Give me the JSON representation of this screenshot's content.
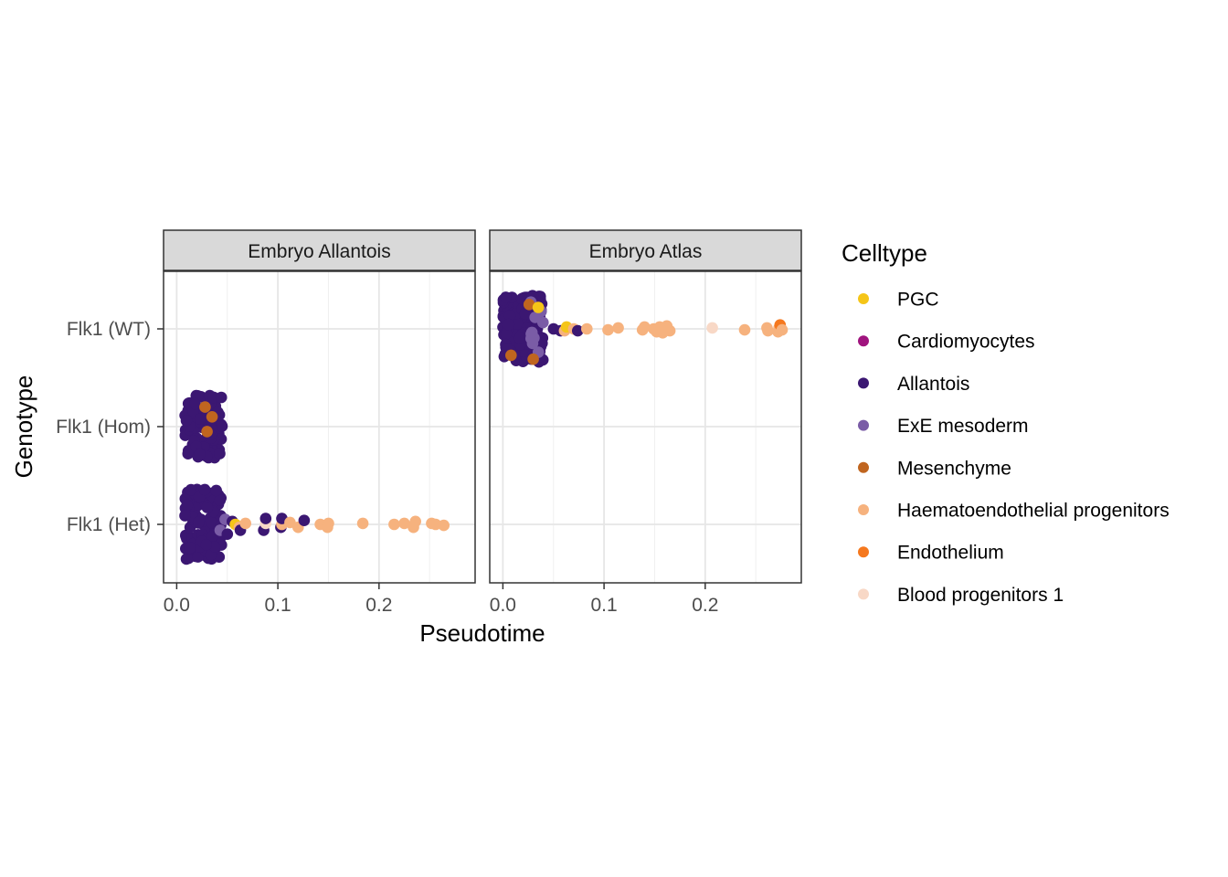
{
  "chart_data": {
    "type": "scatter",
    "xlabel": "Pseudotime",
    "ylabel": "Genotype",
    "xlim": [
      -0.013,
      0.295
    ],
    "x_ticks": [
      "0.0",
      "0.1",
      "0.2"
    ],
    "y_categories": [
      "Flk1 (WT)",
      "Flk1 (Hom)",
      "Flk1 (Het)"
    ],
    "grid": true,
    "legend": {
      "title": "Celltype",
      "position": "right",
      "entries": [
        {
          "name": "PGC",
          "color": "#F5C518"
        },
        {
          "name": "Cardiomyocytes",
          "color": "#A0147E"
        },
        {
          "name": "Allantois",
          "color": "#3B1772"
        },
        {
          "name": "ExE mesoderm",
          "color": "#7A5CA6"
        },
        {
          "name": "Mesenchyme",
          "color": "#C0651F"
        },
        {
          "name": "Haematoendothelial progenitors",
          "color": "#F6B27E"
        },
        {
          "name": "Endothelium",
          "color": "#F5781E"
        },
        {
          "name": "Blood progenitors 1",
          "color": "#F8D8C6"
        }
      ]
    },
    "panels": [
      {
        "title": "Embryo Allantois",
        "groups": [
          {
            "genotype": "Flk1 (Hom)",
            "dense": [
              {
                "celltype": "Allantois",
                "x_range": [
                  0.008,
                  0.045
                ],
                "n": 110,
                "spread": 0.32
              }
            ],
            "points": [
              {
                "celltype": "Mesenchyme",
                "x": 0.03,
                "j": 0.05
              },
              {
                "celltype": "Mesenchyme",
                "x": 0.035,
                "j": -0.1
              },
              {
                "celltype": "Mesenchyme",
                "x": 0.028,
                "j": -0.2
              }
            ]
          },
          {
            "genotype": "Flk1 (Het)",
            "dense": [
              {
                "celltype": "Allantois",
                "x_range": [
                  0.008,
                  0.045
                ],
                "n": 140,
                "spread": 0.36
              }
            ],
            "points": [
              {
                "celltype": "ExE mesoderm",
                "x": 0.043,
                "j": 0.06
              },
              {
                "celltype": "ExE mesoderm",
                "x": 0.048,
                "j": -0.05
              },
              {
                "celltype": "Allantois",
                "x": 0.05,
                "j": 0.1
              },
              {
                "celltype": "Allantois",
                "x": 0.055,
                "j": -0.03
              },
              {
                "celltype": "PGC",
                "x": 0.058,
                "j": 0.0
              },
              {
                "celltype": "Haematoendothelial progenitors",
                "x": 0.062,
                "j": 0.03
              },
              {
                "celltype": "Allantois",
                "x": 0.063,
                "j": 0.06
              },
              {
                "celltype": "Haematoendothelial progenitors",
                "x": 0.068,
                "j": -0.01
              },
              {
                "celltype": "Allantois",
                "x": 0.086,
                "j": 0.06
              },
              {
                "celltype": "Blood progenitors 1",
                "x": 0.088,
                "j": -0.01
              },
              {
                "celltype": "Allantois",
                "x": 0.088,
                "j": -0.06
              },
              {
                "celltype": "Allantois",
                "x": 0.103,
                "j": 0.03
              },
              {
                "celltype": "Haematoendothelial progenitors",
                "x": 0.104,
                "j": 0.0
              },
              {
                "celltype": "Allantois",
                "x": 0.104,
                "j": -0.06
              },
              {
                "celltype": "Haematoendothelial progenitors",
                "x": 0.112,
                "j": -0.02
              },
              {
                "celltype": "Haematoendothelial progenitors",
                "x": 0.12,
                "j": 0.03
              },
              {
                "celltype": "Allantois",
                "x": 0.126,
                "j": -0.04
              },
              {
                "celltype": "Haematoendothelial progenitors",
                "x": 0.142,
                "j": 0.0
              },
              {
                "celltype": "Haematoendothelial progenitors",
                "x": 0.149,
                "j": 0.03
              },
              {
                "celltype": "Haematoendothelial progenitors",
                "x": 0.15,
                "j": -0.01
              },
              {
                "celltype": "Haematoendothelial progenitors",
                "x": 0.184,
                "j": -0.01
              },
              {
                "celltype": "Haematoendothelial progenitors",
                "x": 0.215,
                "j": 0.0
              },
              {
                "celltype": "Haematoendothelial progenitors",
                "x": 0.225,
                "j": -0.01
              },
              {
                "celltype": "Haematoendothelial progenitors",
                "x": 0.234,
                "j": 0.03
              },
              {
                "celltype": "Haematoendothelial progenitors",
                "x": 0.236,
                "j": -0.03
              },
              {
                "celltype": "Haematoendothelial progenitors",
                "x": 0.252,
                "j": -0.01
              },
              {
                "celltype": "Haematoendothelial progenitors",
                "x": 0.256,
                "j": 0.0
              },
              {
                "celltype": "Haematoendothelial progenitors",
                "x": 0.264,
                "j": 0.01
              }
            ]
          }
        ]
      },
      {
        "title": "Embryo Atlas",
        "groups": [
          {
            "genotype": "Flk1 (WT)",
            "dense": [
              {
                "celltype": "Allantois",
                "x_range": [
                  0.0,
                  0.04
                ],
                "n": 160,
                "spread": 0.34
              },
              {
                "celltype": "ExE mesoderm",
                "x_range": [
                  0.025,
                  0.04
                ],
                "n": 10,
                "spread": 0.3
              }
            ],
            "points": [
              {
                "celltype": "Mesenchyme",
                "x": 0.008,
                "j": 0.27
              },
              {
                "celltype": "Mesenchyme",
                "x": 0.03,
                "j": 0.31
              },
              {
                "celltype": "Mesenchyme",
                "x": 0.026,
                "j": -0.25
              },
              {
                "celltype": "PGC",
                "x": 0.035,
                "j": -0.22
              },
              {
                "celltype": "Allantois",
                "x": 0.05,
                "j": 0.0
              },
              {
                "celltype": "Allantois",
                "x": 0.057,
                "j": 0.02
              },
              {
                "celltype": "Haematoendothelial progenitors",
                "x": 0.061,
                "j": 0.02
              },
              {
                "celltype": "PGC",
                "x": 0.063,
                "j": -0.02
              },
              {
                "celltype": "Haematoendothelial progenitors",
                "x": 0.07,
                "j": 0.0
              },
              {
                "celltype": "Allantois",
                "x": 0.074,
                "j": 0.02
              },
              {
                "celltype": "Haematoendothelial progenitors",
                "x": 0.083,
                "j": 0.0
              },
              {
                "celltype": "Haematoendothelial progenitors",
                "x": 0.104,
                "j": 0.01
              },
              {
                "celltype": "Haematoendothelial progenitors",
                "x": 0.114,
                "j": -0.01
              },
              {
                "celltype": "Haematoendothelial progenitors",
                "x": 0.138,
                "j": 0.01
              },
              {
                "celltype": "Haematoendothelial progenitors",
                "x": 0.14,
                "j": -0.02
              },
              {
                "celltype": "Haematoendothelial progenitors",
                "x": 0.149,
                "j": 0.0
              },
              {
                "celltype": "Haematoendothelial progenitors",
                "x": 0.152,
                "j": 0.03
              },
              {
                "celltype": "Haematoendothelial progenitors",
                "x": 0.155,
                "j": -0.02
              },
              {
                "celltype": "Haematoendothelial progenitors",
                "x": 0.158,
                "j": 0.04
              },
              {
                "celltype": "Haematoendothelial progenitors",
                "x": 0.16,
                "j": 0.0
              },
              {
                "celltype": "Haematoendothelial progenitors",
                "x": 0.162,
                "j": -0.03
              },
              {
                "celltype": "Haematoendothelial progenitors",
                "x": 0.165,
                "j": 0.02
              },
              {
                "celltype": "Blood progenitors 1",
                "x": 0.207,
                "j": -0.01
              },
              {
                "celltype": "Haematoendothelial progenitors",
                "x": 0.239,
                "j": 0.01
              },
              {
                "celltype": "Haematoendothelial progenitors",
                "x": 0.261,
                "j": -0.01
              },
              {
                "celltype": "Haematoendothelial progenitors",
                "x": 0.262,
                "j": 0.02
              },
              {
                "celltype": "Haematoendothelial progenitors",
                "x": 0.272,
                "j": 0.03
              },
              {
                "celltype": "Haematoendothelial progenitors",
                "x": 0.273,
                "j": -0.01
              },
              {
                "celltype": "Endothelium",
                "x": 0.274,
                "j": -0.04
              },
              {
                "celltype": "Haematoendothelial progenitors",
                "x": 0.276,
                "j": 0.01
              }
            ]
          }
        ]
      }
    ]
  }
}
